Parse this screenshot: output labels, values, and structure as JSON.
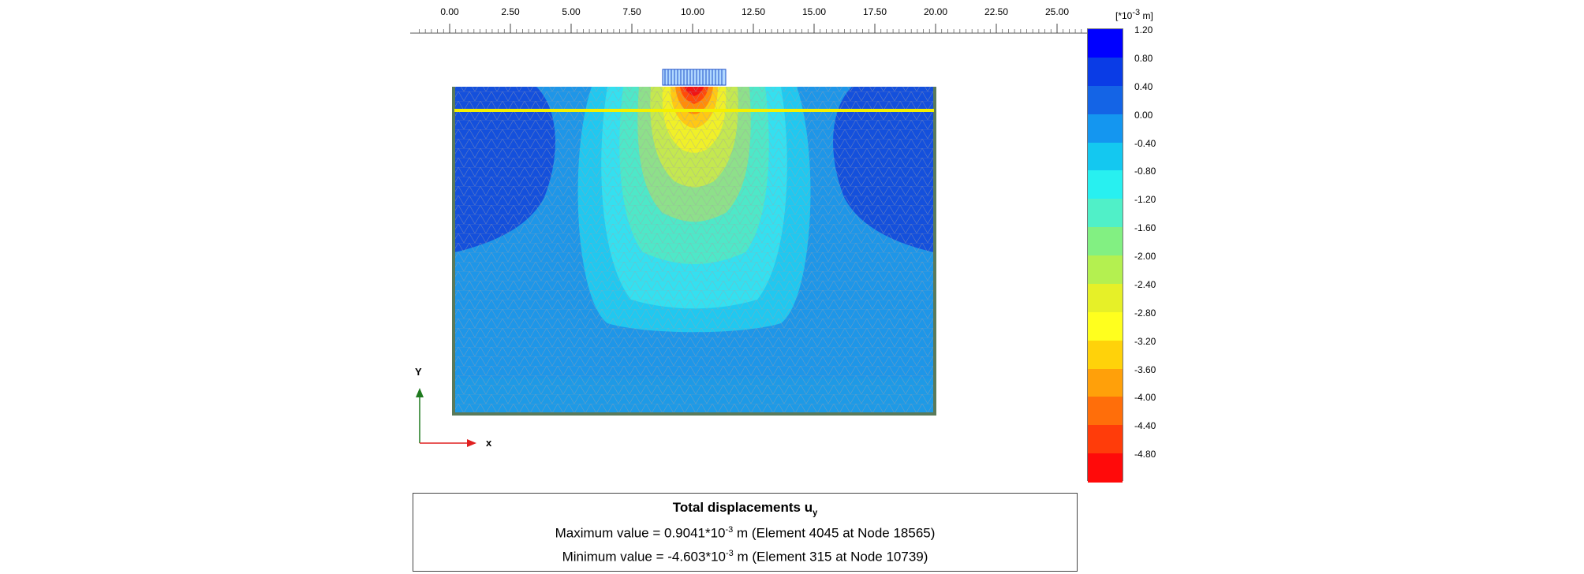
{
  "ruler": {
    "ticks": [
      "0.00",
      "2.50",
      "5.00",
      "7.50",
      "10.00",
      "12.50",
      "15.00",
      "17.50",
      "20.00",
      "22.50",
      "25.00"
    ]
  },
  "axes": {
    "y_label": "Y",
    "x_label": "x",
    "y_color": "#1f7a1f",
    "x_color": "#e02020"
  },
  "legend": {
    "unit_prefix": "[*10",
    "unit_exp": "-3",
    "unit_suffix": " m]",
    "labels": [
      "1.20",
      "0.80",
      "0.40",
      "0.00",
      "-0.40",
      "-0.80",
      "-1.20",
      "-1.60",
      "-2.00",
      "-2.40",
      "-2.80",
      "-3.20",
      "-3.60",
      "-4.00",
      "-4.40",
      "-4.80"
    ],
    "colors": [
      "#0000ff",
      "#0a3ce6",
      "#1464e6",
      "#1496f0",
      "#14c8f0",
      "#28f0f0",
      "#50f0c8",
      "#82f082",
      "#b4f050",
      "#e6f028",
      "#ffff1e",
      "#ffd20a",
      "#ffa00a",
      "#ff6e0a",
      "#ff3c0a",
      "#ff0a0a"
    ]
  },
  "summary": {
    "title": "Total displacements u",
    "title_sub": "y",
    "max_prefix": "Maximum value = 0.9041*10",
    "max_exp": "-3",
    "max_suffix": " m (Element 4045 at Node 18565)",
    "min_prefix": "Minimum value = -4.603*10",
    "min_exp": "-3",
    "min_suffix": " m (Element 315 at Node 10739)"
  }
}
